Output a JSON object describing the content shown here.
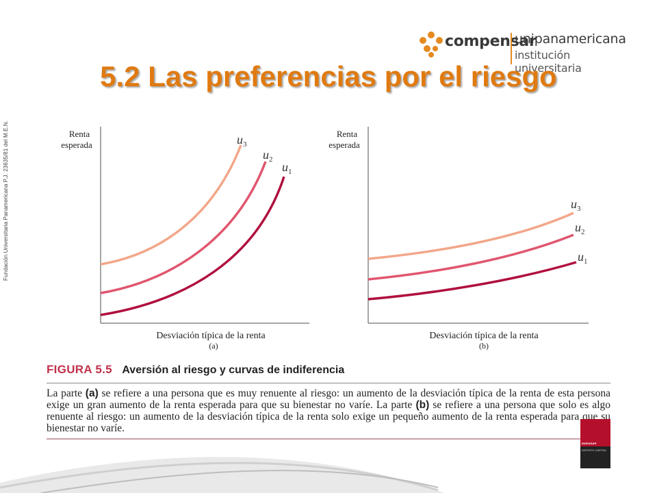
{
  "side_text": "Fundación Universitaria Panamericana P.J. 23635/81 del M.E.N.",
  "logo": {
    "brand": "compensar",
    "sub1": "unipanamericana",
    "sub2": "institución universitaria",
    "dot_color": "#e58a1f"
  },
  "title": "5.2 Las preferencias por el riesgo",
  "figure": {
    "label": "FIGURA 5.5",
    "title": "Aversión al riesgo y curvas de indiferencia",
    "text_parts": {
      "p1": "La parte ",
      "a": "(a)",
      "p2": " se refiere a una persona que es muy renuente al riesgo: un aumento de la desviación típica de la renta de esta persona exige un gran aumento de la renta esperada para que su bienestar no varíe. La parte ",
      "b": "(b)",
      "p3": " se refiere a una persona que solo es algo renuente al riesgo: un aumento de la desviación típica de la renta solo exige un pequeño aumento de la renta esperada para que su bienestar no varíe."
    }
  },
  "graphs": {
    "a": {
      "ylabel_line1": "Renta",
      "ylabel_line2": "esperada",
      "xlabel": "Desviación típica de la renta",
      "part": "(a)",
      "curves": [
        {
          "label": "u",
          "sub": "3",
          "color": "#f2a78a"
        },
        {
          "label": "u",
          "sub": "2",
          "color": "#e0566e"
        },
        {
          "label": "u",
          "sub": "1",
          "color": "#b0103e"
        }
      ]
    },
    "b": {
      "ylabel_line1": "Renta",
      "ylabel_line2": "esperada",
      "xlabel": "Desviación típica de la renta",
      "part": "(b)",
      "curves": [
        {
          "label": "u",
          "sub": "3",
          "color": "#f2a78a"
        },
        {
          "label": "u",
          "sub": "2",
          "color": "#e0566e"
        },
        {
          "label": "u",
          "sub": "1",
          "color": "#b0103e"
        }
      ]
    }
  },
  "badge": {
    "top_text": "INGRASAR",
    "bottom_text": "DISTRITO CAPITAL"
  }
}
